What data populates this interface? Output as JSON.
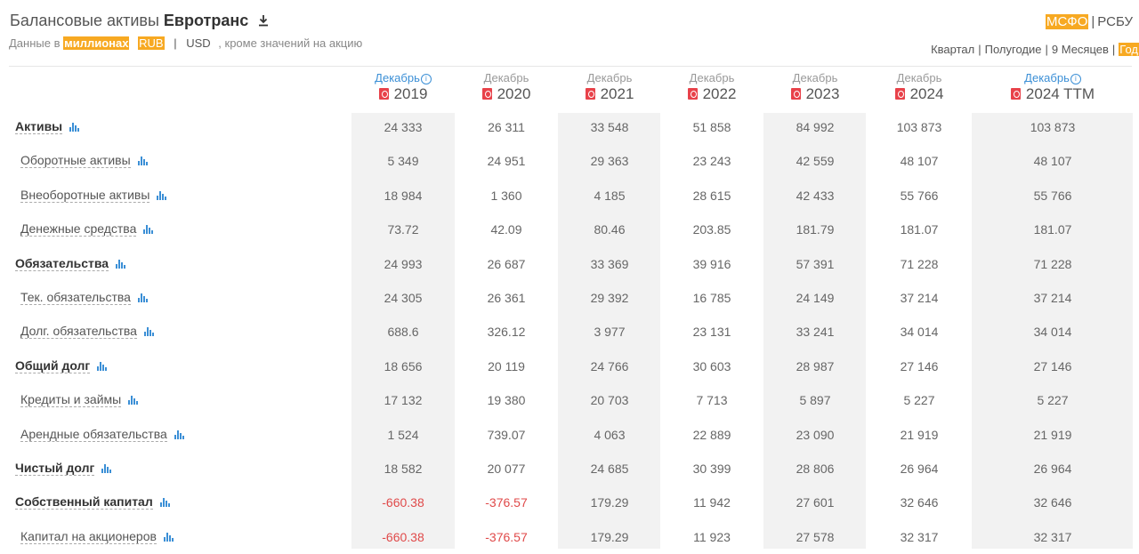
{
  "header": {
    "title_prefix": "Балансовые активы",
    "company": "Евротранс",
    "units_prefix": "Данные в",
    "units_scale": "миллионах",
    "currency_active": "RUB",
    "currency_other": "USD",
    "units_suffix": ", кроме значений на акцию",
    "standards": [
      "МСФО",
      "РСБУ"
    ],
    "standard_active": "МСФО",
    "periods": [
      "Квартал",
      "Полугодие",
      "9 Месяцев",
      "Год"
    ],
    "period_active": "Год",
    "accent_color": "#f7a922"
  },
  "columns": [
    {
      "month": "Декабрь",
      "year": "2019",
      "info": true
    },
    {
      "month": "Декабрь",
      "year": "2020",
      "info": false
    },
    {
      "month": "Декабрь",
      "year": "2021",
      "info": false
    },
    {
      "month": "Декабрь",
      "year": "2022",
      "info": false
    },
    {
      "month": "Декабрь",
      "year": "2023",
      "info": false
    },
    {
      "month": "Декабрь",
      "year": "2024",
      "info": false
    },
    {
      "month": "Декабрь",
      "year": "2024 TTM",
      "info": true
    }
  ],
  "rows": [
    {
      "label": "Активы",
      "bold": true,
      "values": [
        "24 333",
        "26 311",
        "33 548",
        "51 858",
        "84 992",
        "103 873",
        "103 873"
      ]
    },
    {
      "label": "Оборотные активы",
      "bold": false,
      "values": [
        "5 349",
        "24 951",
        "29 363",
        "23 243",
        "42 559",
        "48 107",
        "48 107"
      ]
    },
    {
      "label": "Внеоборотные активы",
      "bold": false,
      "values": [
        "18 984",
        "1 360",
        "4 185",
        "28 615",
        "42 433",
        "55 766",
        "55 766"
      ]
    },
    {
      "label": "Денежные средства",
      "bold": false,
      "values": [
        "73.72",
        "42.09",
        "80.46",
        "203.85",
        "181.79",
        "181.07",
        "181.07"
      ]
    },
    {
      "label": "Обязательства",
      "bold": true,
      "values": [
        "24 993",
        "26 687",
        "33 369",
        "39 916",
        "57 391",
        "71 228",
        "71 228"
      ]
    },
    {
      "label": "Тек. обязательства",
      "bold": false,
      "values": [
        "24 305",
        "26 361",
        "29 392",
        "16 785",
        "24 149",
        "37 214",
        "37 214"
      ]
    },
    {
      "label": "Долг. обязательства",
      "bold": false,
      "values": [
        "688.6",
        "326.12",
        "3 977",
        "23 131",
        "33 241",
        "34 014",
        "34 014"
      ]
    },
    {
      "label": "Общий долг",
      "bold": true,
      "values": [
        "18 656",
        "20 119",
        "24 766",
        "30 603",
        "28 987",
        "27 146",
        "27 146"
      ]
    },
    {
      "label": "Кредиты и займы",
      "bold": false,
      "values": [
        "17 132",
        "19 380",
        "20 703",
        "7 713",
        "5 897",
        "5 227",
        "5 227"
      ]
    },
    {
      "label": "Арендные обязательства",
      "bold": false,
      "values": [
        "1 524",
        "739.07",
        "4 063",
        "22 889",
        "23 090",
        "21 919",
        "21 919"
      ]
    },
    {
      "label": "Чистый долг",
      "bold": true,
      "values": [
        "18 582",
        "20 077",
        "24 685",
        "30 399",
        "28 806",
        "26 964",
        "26 964"
      ]
    },
    {
      "label": "Собственный капитал",
      "bold": true,
      "values": [
        "-660.38",
        "-376.57",
        "179.29",
        "11 942",
        "27 601",
        "32 646",
        "32 646"
      ]
    },
    {
      "label": "Капитал на акционеров",
      "bold": false,
      "values": [
        "-660.38",
        "-376.57",
        "179.29",
        "11 923",
        "27 578",
        "32 317",
        "32 317"
      ]
    }
  ],
  "negative_color": "#e04a4a"
}
